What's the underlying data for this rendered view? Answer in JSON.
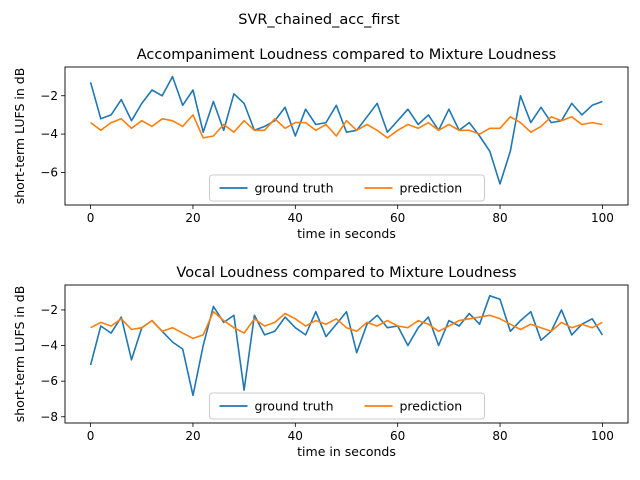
{
  "figure": {
    "suptitle": "SVR_chained_acc_first"
  },
  "colors": {
    "ground_truth": "#1f77b4",
    "prediction": "#ff7f0e"
  },
  "chart_data": [
    {
      "type": "line",
      "title": "Accompaniment Loudness compared to Mixture Loudness",
      "xlabel": "time in seconds",
      "ylabel": "short-term LUFS in dB",
      "xlim": [
        -5,
        105
      ],
      "ylim": [
        -7.7,
        -0.5
      ],
      "xticks": [
        0,
        20,
        40,
        60,
        80,
        100
      ],
      "yticks": [
        -6,
        -4,
        -2
      ],
      "legend": {
        "placement": "lower center",
        "entries": [
          "ground truth",
          "prediction"
        ]
      },
      "x": [
        0,
        2,
        4,
        6,
        8,
        10,
        12,
        14,
        16,
        18,
        20,
        22,
        24,
        26,
        28,
        30,
        32,
        34,
        36,
        38,
        40,
        42,
        44,
        46,
        48,
        50,
        52,
        54,
        56,
        58,
        60,
        62,
        64,
        66,
        68,
        70,
        72,
        74,
        76,
        78,
        80,
        82,
        84,
        86,
        88,
        90,
        92,
        94,
        96,
        98,
        100
      ],
      "series": [
        {
          "name": "ground truth",
          "values": [
            -1.3,
            -3.2,
            -3.0,
            -2.2,
            -3.3,
            -2.4,
            -1.7,
            -2.0,
            -1.0,
            -2.5,
            -1.7,
            -3.9,
            -2.3,
            -3.8,
            -1.9,
            -2.4,
            -3.8,
            -3.6,
            -3.3,
            -2.6,
            -4.1,
            -2.7,
            -3.5,
            -3.4,
            -2.5,
            -3.9,
            -3.8,
            -3.1,
            -2.4,
            -3.9,
            -3.3,
            -2.7,
            -3.5,
            -3.0,
            -3.8,
            -2.7,
            -3.8,
            -3.4,
            -4.1,
            -4.9,
            -6.6,
            -4.9,
            -2.0,
            -3.4,
            -2.6,
            -3.4,
            -3.3,
            -2.4,
            -3.0,
            -2.5,
            -2.3
          ]
        },
        {
          "name": "prediction",
          "values": [
            -3.4,
            -3.8,
            -3.4,
            -3.2,
            -3.7,
            -3.3,
            -3.6,
            -3.2,
            -3.3,
            -3.6,
            -3.0,
            -4.2,
            -4.1,
            -3.5,
            -3.9,
            -3.3,
            -3.8,
            -3.8,
            -3.2,
            -3.7,
            -3.4,
            -3.4,
            -3.8,
            -3.5,
            -4.1,
            -3.3,
            -3.8,
            -3.5,
            -3.8,
            -4.2,
            -3.8,
            -3.5,
            -3.7,
            -3.4,
            -3.8,
            -3.5,
            -3.8,
            -3.8,
            -4.0,
            -3.7,
            -3.7,
            -3.1,
            -3.4,
            -3.9,
            -3.6,
            -3.1,
            -3.3,
            -3.1,
            -3.5,
            -3.4,
            -3.5
          ]
        }
      ]
    },
    {
      "type": "line",
      "title": "Vocal Loudness compared to Mixture Loudness",
      "xlabel": "time in seconds",
      "ylabel": "short-term LUFS in dB",
      "xlim": [
        -5,
        105
      ],
      "ylim": [
        -8.35,
        -0.6
      ],
      "xticks": [
        0,
        20,
        40,
        60,
        80,
        100
      ],
      "yticks": [
        -8,
        -6,
        -4,
        -2
      ],
      "legend": {
        "placement": "lower center",
        "entries": [
          "ground truth",
          "prediction"
        ]
      },
      "x": [
        0,
        2,
        4,
        6,
        8,
        10,
        12,
        14,
        16,
        18,
        20,
        22,
        24,
        26,
        28,
        30,
        32,
        34,
        36,
        38,
        40,
        42,
        44,
        46,
        48,
        50,
        52,
        54,
        56,
        58,
        60,
        62,
        64,
        66,
        68,
        70,
        72,
        74,
        76,
        78,
        80,
        82,
        84,
        86,
        88,
        90,
        92,
        94,
        96,
        98,
        100
      ],
      "series": [
        {
          "name": "ground truth",
          "values": [
            -5.1,
            -2.9,
            -3.3,
            -2.4,
            -4.8,
            -3.0,
            -2.6,
            -3.2,
            -3.8,
            -4.2,
            -6.8,
            -4.0,
            -1.8,
            -2.7,
            -2.3,
            -6.5,
            -2.3,
            -3.4,
            -3.2,
            -2.4,
            -3.0,
            -3.4,
            -2.1,
            -3.5,
            -2.8,
            -2.1,
            -4.4,
            -2.8,
            -2.3,
            -3.0,
            -2.9,
            -4.0,
            -3.0,
            -2.4,
            -4.0,
            -2.6,
            -2.9,
            -2.2,
            -2.8,
            -1.2,
            -1.4,
            -3.2,
            -2.6,
            -2.1,
            -3.7,
            -3.2,
            -2.0,
            -3.4,
            -2.8,
            -2.5,
            -3.4
          ]
        },
        {
          "name": "prediction",
          "values": [
            -3.0,
            -2.7,
            -2.9,
            -2.5,
            -3.1,
            -3.0,
            -2.6,
            -3.2,
            -3.0,
            -3.3,
            -3.6,
            -3.4,
            -2.1,
            -2.6,
            -3.0,
            -3.3,
            -2.5,
            -2.9,
            -2.7,
            -2.2,
            -2.5,
            -2.9,
            -2.6,
            -2.8,
            -2.5,
            -3.0,
            -3.2,
            -2.7,
            -2.9,
            -2.6,
            -2.9,
            -3.0,
            -2.6,
            -2.8,
            -3.2,
            -2.9,
            -2.6,
            -2.5,
            -2.4,
            -2.3,
            -2.5,
            -2.8,
            -3.1,
            -2.8,
            -3.0,
            -3.2,
            -2.7,
            -3.0,
            -2.8,
            -3.0,
            -2.7
          ]
        }
      ]
    }
  ]
}
